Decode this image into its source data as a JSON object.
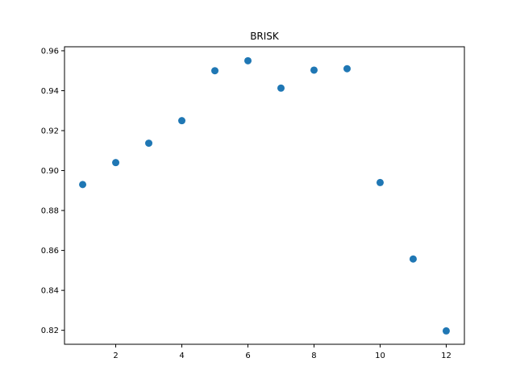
{
  "chart_data": {
    "type": "scatter",
    "title": "BRISK",
    "xlabel": "",
    "ylabel": "",
    "xlim": [
      0.45,
      12.55
    ],
    "ylim": [
      0.813,
      0.962
    ],
    "xticks": [
      2,
      4,
      6,
      8,
      10,
      12
    ],
    "yticks": [
      0.82,
      0.84,
      0.86,
      0.88,
      0.9,
      0.92,
      0.94,
      0.96
    ],
    "xtick_labels": [
      "2",
      "4",
      "6",
      "8",
      "10",
      "12"
    ],
    "ytick_labels": [
      "0.82",
      "0.84",
      "0.86",
      "0.88",
      "0.90",
      "0.92",
      "0.94",
      "0.96"
    ],
    "grid": false,
    "series": [
      {
        "color": "#1f77b4",
        "x": [
          1,
          2,
          3,
          4,
          5,
          6,
          7,
          8,
          9,
          10,
          11,
          12
        ],
        "y": [
          0.893,
          0.904,
          0.9137,
          0.925,
          0.95,
          0.955,
          0.9413,
          0.9503,
          0.951,
          0.894,
          0.8557,
          0.8197
        ]
      }
    ]
  }
}
